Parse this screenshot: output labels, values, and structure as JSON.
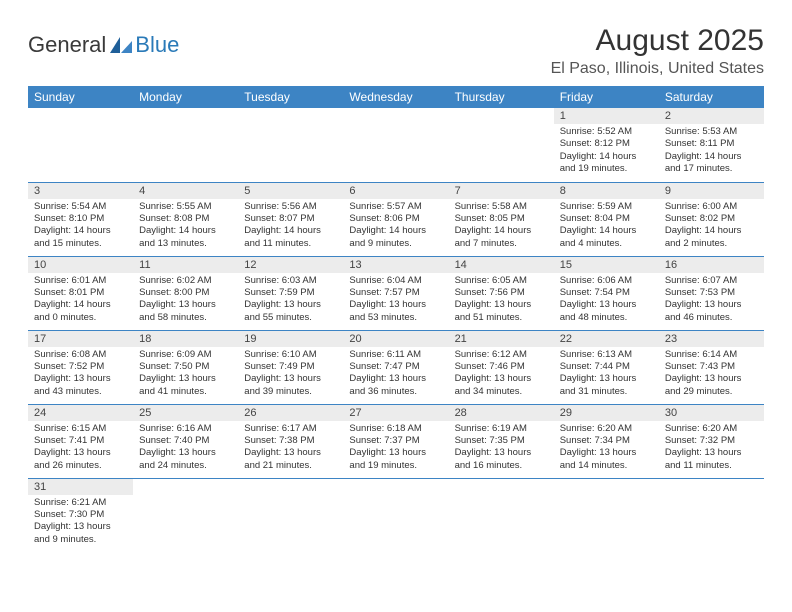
{
  "logo": {
    "part1": "General",
    "part2": "Blue"
  },
  "title": "August 2025",
  "subtitle": "El Paso, Illinois, United States",
  "theme": {
    "header_bg": "#3d84c4",
    "header_fg": "#ffffff",
    "daynum_bg": "#ececec",
    "border_color": "#3d84c4",
    "logo_accent": "#2a7ab8"
  },
  "daysOfWeek": [
    "Sunday",
    "Monday",
    "Tuesday",
    "Wednesday",
    "Thursday",
    "Friday",
    "Saturday"
  ],
  "weeks": [
    [
      null,
      null,
      null,
      null,
      null,
      {
        "n": "1",
        "sr": "5:52 AM",
        "ss": "8:12 PM",
        "dl": "14 hours and 19 minutes."
      },
      {
        "n": "2",
        "sr": "5:53 AM",
        "ss": "8:11 PM",
        "dl": "14 hours and 17 minutes."
      }
    ],
    [
      {
        "n": "3",
        "sr": "5:54 AM",
        "ss": "8:10 PM",
        "dl": "14 hours and 15 minutes."
      },
      {
        "n": "4",
        "sr": "5:55 AM",
        "ss": "8:08 PM",
        "dl": "14 hours and 13 minutes."
      },
      {
        "n": "5",
        "sr": "5:56 AM",
        "ss": "8:07 PM",
        "dl": "14 hours and 11 minutes."
      },
      {
        "n": "6",
        "sr": "5:57 AM",
        "ss": "8:06 PM",
        "dl": "14 hours and 9 minutes."
      },
      {
        "n": "7",
        "sr": "5:58 AM",
        "ss": "8:05 PM",
        "dl": "14 hours and 7 minutes."
      },
      {
        "n": "8",
        "sr": "5:59 AM",
        "ss": "8:04 PM",
        "dl": "14 hours and 4 minutes."
      },
      {
        "n": "9",
        "sr": "6:00 AM",
        "ss": "8:02 PM",
        "dl": "14 hours and 2 minutes."
      }
    ],
    [
      {
        "n": "10",
        "sr": "6:01 AM",
        "ss": "8:01 PM",
        "dl": "14 hours and 0 minutes."
      },
      {
        "n": "11",
        "sr": "6:02 AM",
        "ss": "8:00 PM",
        "dl": "13 hours and 58 minutes."
      },
      {
        "n": "12",
        "sr": "6:03 AM",
        "ss": "7:59 PM",
        "dl": "13 hours and 55 minutes."
      },
      {
        "n": "13",
        "sr": "6:04 AM",
        "ss": "7:57 PM",
        "dl": "13 hours and 53 minutes."
      },
      {
        "n": "14",
        "sr": "6:05 AM",
        "ss": "7:56 PM",
        "dl": "13 hours and 51 minutes."
      },
      {
        "n": "15",
        "sr": "6:06 AM",
        "ss": "7:54 PM",
        "dl": "13 hours and 48 minutes."
      },
      {
        "n": "16",
        "sr": "6:07 AM",
        "ss": "7:53 PM",
        "dl": "13 hours and 46 minutes."
      }
    ],
    [
      {
        "n": "17",
        "sr": "6:08 AM",
        "ss": "7:52 PM",
        "dl": "13 hours and 43 minutes."
      },
      {
        "n": "18",
        "sr": "6:09 AM",
        "ss": "7:50 PM",
        "dl": "13 hours and 41 minutes."
      },
      {
        "n": "19",
        "sr": "6:10 AM",
        "ss": "7:49 PM",
        "dl": "13 hours and 39 minutes."
      },
      {
        "n": "20",
        "sr": "6:11 AM",
        "ss": "7:47 PM",
        "dl": "13 hours and 36 minutes."
      },
      {
        "n": "21",
        "sr": "6:12 AM",
        "ss": "7:46 PM",
        "dl": "13 hours and 34 minutes."
      },
      {
        "n": "22",
        "sr": "6:13 AM",
        "ss": "7:44 PM",
        "dl": "13 hours and 31 minutes."
      },
      {
        "n": "23",
        "sr": "6:14 AM",
        "ss": "7:43 PM",
        "dl": "13 hours and 29 minutes."
      }
    ],
    [
      {
        "n": "24",
        "sr": "6:15 AM",
        "ss": "7:41 PM",
        "dl": "13 hours and 26 minutes."
      },
      {
        "n": "25",
        "sr": "6:16 AM",
        "ss": "7:40 PM",
        "dl": "13 hours and 24 minutes."
      },
      {
        "n": "26",
        "sr": "6:17 AM",
        "ss": "7:38 PM",
        "dl": "13 hours and 21 minutes."
      },
      {
        "n": "27",
        "sr": "6:18 AM",
        "ss": "7:37 PM",
        "dl": "13 hours and 19 minutes."
      },
      {
        "n": "28",
        "sr": "6:19 AM",
        "ss": "7:35 PM",
        "dl": "13 hours and 16 minutes."
      },
      {
        "n": "29",
        "sr": "6:20 AM",
        "ss": "7:34 PM",
        "dl": "13 hours and 14 minutes."
      },
      {
        "n": "30",
        "sr": "6:20 AM",
        "ss": "7:32 PM",
        "dl": "13 hours and 11 minutes."
      }
    ],
    [
      {
        "n": "31",
        "sr": "6:21 AM",
        "ss": "7:30 PM",
        "dl": "13 hours and 9 minutes."
      },
      null,
      null,
      null,
      null,
      null,
      null
    ]
  ]
}
